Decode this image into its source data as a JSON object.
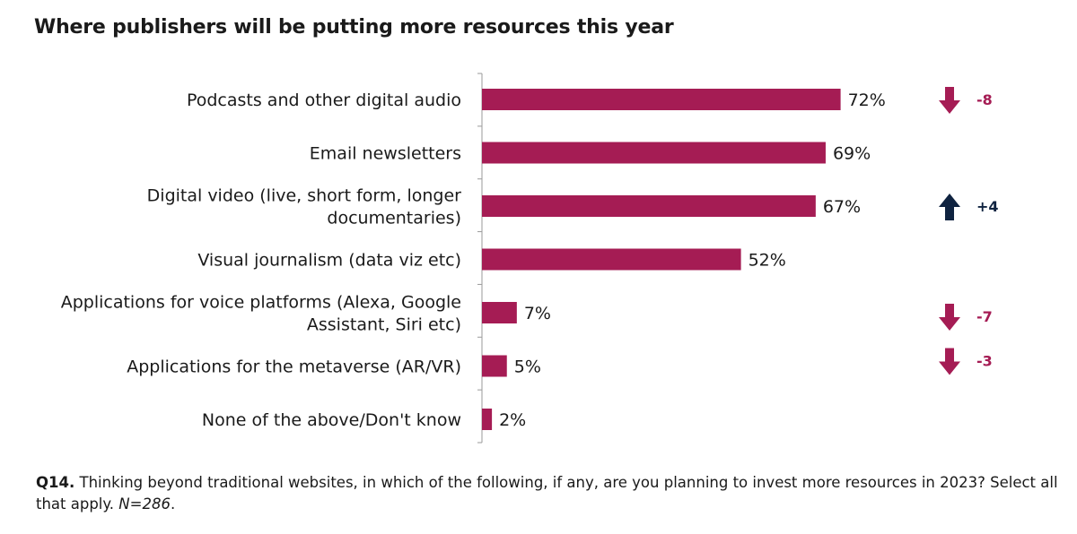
{
  "chart_data": {
    "type": "bar",
    "orientation": "horizontal",
    "title": "Where publishers will be putting more resources this year",
    "categories": [
      [
        "Podcasts and other digital audio"
      ],
      [
        "Email newsletters"
      ],
      [
        "Digital video (live, short form, longer",
        "documentaries)"
      ],
      [
        "Visual journalism (data viz etc)"
      ],
      [
        "Applications for voice platforms (Alexa, Google",
        "Assistant, Siri etc)"
      ],
      [
        "Applications for the metaverse (AR/VR)"
      ],
      [
        "None of the above/Don't know"
      ]
    ],
    "values": [
      72,
      69,
      67,
      52,
      7,
      5,
      2
    ],
    "value_labels": [
      "72%",
      "69%",
      "67%",
      "52%",
      "7%",
      "5%",
      "2%"
    ],
    "changes": [
      {
        "index": 0,
        "label": "-8",
        "direction": "down"
      },
      {
        "index": 2,
        "label": "+4",
        "direction": "up"
      },
      {
        "index": 4,
        "label": "-7",
        "direction": "down"
      },
      {
        "index": 5,
        "label": "-3",
        "direction": "down"
      }
    ],
    "xlim": [
      0,
      100
    ],
    "grid": false,
    "colors": {
      "bar": "#a51c54",
      "down": "#a51c54",
      "up": "#0f2340",
      "axis": "#9a9a9a"
    }
  },
  "footnote": {
    "question_id": "Q14.",
    "question": " Thinking beyond traditional websites, in which of the following, if any, are you planning to invest more resources in 2023? Select all that apply. ",
    "sample": "N=286",
    "end": "."
  }
}
